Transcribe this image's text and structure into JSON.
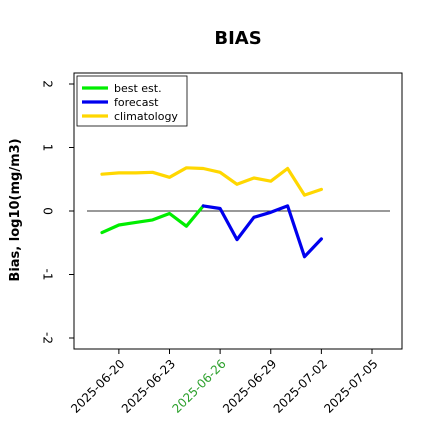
{
  "chart_data": {
    "type": "line",
    "title": "BIAS",
    "xlabel": "",
    "ylabel": "Bias, log10(mg/m3)",
    "x_ticks": [
      "2025-06-20",
      "2025-06-23",
      "2025-06-26",
      "2025-06-29",
      "2025-07-02",
      "2025-07-05"
    ],
    "highlighted_x_tick": "2025-06-26",
    "highlight_color": "#2ca02c",
    "xlim": [
      "2025-06-19",
      "2025-07-05"
    ],
    "ylim": [
      -2,
      2
    ],
    "y_ticks": [
      -2,
      -1,
      0,
      1,
      2
    ],
    "zero_line": true,
    "grid": false,
    "legend_position": "top-left",
    "series": [
      {
        "name": "climatology",
        "color": "#ffd700",
        "x": [
          "2025-06-19",
          "2025-06-20",
          "2025-06-21",
          "2025-06-22",
          "2025-06-23",
          "2025-06-24",
          "2025-06-25",
          "2025-06-26",
          "2025-06-27",
          "2025-06-28",
          "2025-06-29",
          "2025-06-30",
          "2025-07-01",
          "2025-07-02"
        ],
        "values": [
          0.58,
          0.6,
          0.6,
          0.61,
          0.53,
          0.68,
          0.67,
          0.61,
          0.42,
          0.52,
          0.47,
          0.67,
          0.25,
          0.34
        ]
      },
      {
        "name": "best est.",
        "color": "#00ee00",
        "x": [
          "2025-06-19",
          "2025-06-20",
          "2025-06-21",
          "2025-06-22",
          "2025-06-23",
          "2025-06-24",
          "2025-06-25"
        ],
        "values": [
          -0.34,
          -0.22,
          -0.18,
          -0.14,
          -0.04,
          -0.24,
          0.08
        ]
      },
      {
        "name": "forecast",
        "color": "#0000ee",
        "x": [
          "2025-06-25",
          "2025-06-26",
          "2025-06-27",
          "2025-06-28",
          "2025-06-29",
          "2025-06-30",
          "2025-07-01",
          "2025-07-02"
        ],
        "values": [
          0.08,
          0.04,
          -0.45,
          -0.1,
          -0.02,
          0.08,
          -0.72,
          -0.44
        ]
      }
    ],
    "legend_order": [
      "best est.",
      "forecast",
      "climatology"
    ]
  }
}
